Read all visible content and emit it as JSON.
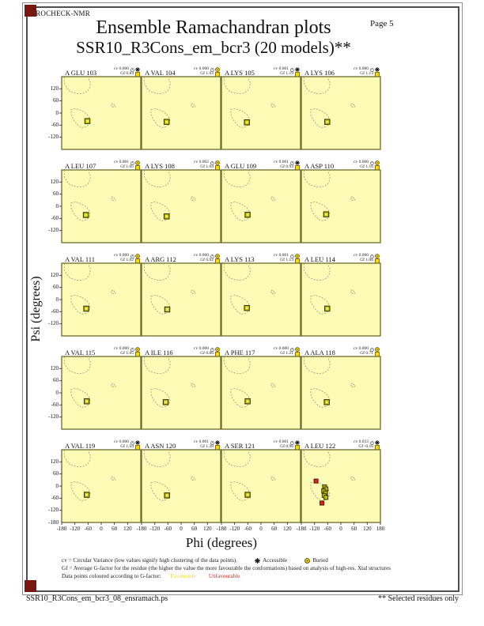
{
  "page": {
    "app": "PROCHECK-NMR",
    "page_label": "Page  5",
    "title": "Ensemble Ramachandran plots",
    "subtitle": "SSR10_R3Cons_em_bcr3 (20 models)**",
    "footer_left": "SSR10_R3Cons_em_bcr3_08_ensramach.ps",
    "footer_right": "** Selected residues only"
  },
  "legend": {
    "line1": "cv = Circular Variance (low values signify high clustering of the data points).",
    "accessible_label": "Accessible",
    "buried_label": "Buried",
    "line2": "Gf = Average G-factor for the residue (the higher the value the more favourable the conformations) based on analysis of high-res. Xtal structures",
    "line3": "Data points coloured according to G-factor:",
    "favourable_label": "Favourable",
    "unfavourable_label": "Unfavourable"
  },
  "colors": {
    "plot_background": "#fbfbb5",
    "plot_border": "#6b6b2e",
    "region_dash": "#9b9b85",
    "favourable_point": "#c9c400",
    "favourable_point_border": "#3a3a00",
    "unfavourable_point": "#d8281a",
    "buried_icon": "#f2df00",
    "corner_mark": "#7a1612"
  },
  "chart_data": {
    "type": "scatter",
    "layout": "4x5 grid of per-residue ensemble Ramachandran plots",
    "xlabel": "Phi (degrees)",
    "ylabel": "Psi (degrees)",
    "xlim": [
      -180,
      180
    ],
    "ylim": [
      -180,
      180
    ],
    "y_tick_values": [
      120,
      60,
      0,
      -60,
      -120
    ],
    "y_edge_tick": -180,
    "x_tick_values": [
      -180,
      -120,
      -60,
      0,
      60,
      120
    ],
    "x_edge_tick": 180,
    "plots": [
      {
        "residue": "A GLU 103",
        "cv_label": "cv 0.000",
        "gf_label": "Gf 0.84",
        "accessibility": "accessible",
        "points": [
          {
            "phi": -63,
            "psi": -40,
            "colour": "favourable"
          }
        ]
      },
      {
        "residue": "A VAL 104",
        "cv_label": "cv 0.000",
        "gf_label": "Gf 1.03",
        "accessibility": "buried",
        "points": [
          {
            "phi": -66,
            "psi": -44,
            "colour": "favourable"
          }
        ]
      },
      {
        "residue": "A LYS 105",
        "cv_label": "cv 0.001",
        "gf_label": "Gf 1.19",
        "accessibility": "accessible",
        "points": [
          {
            "phi": -64,
            "psi": -46,
            "colour": "favourable"
          }
        ]
      },
      {
        "residue": "A LYS 106",
        "cv_label": "cv 0.000",
        "gf_label": "Gf 1.13",
        "accessibility": "accessible",
        "points": [
          {
            "phi": -62,
            "psi": -44,
            "colour": "favourable"
          }
        ]
      },
      {
        "residue": "A LEU 107",
        "cv_label": "cv 0.001",
        "gf_label": "Gf 1.05",
        "accessibility": "buried",
        "points": [
          {
            "phi": -70,
            "psi": -43,
            "colour": "favourable"
          }
        ]
      },
      {
        "residue": "A LYS 108",
        "cv_label": "cv 0.002",
        "gf_label": "Gf 1.04",
        "accessibility": "buried",
        "points": [
          {
            "phi": -66,
            "psi": -50,
            "colour": "favourable"
          }
        ]
      },
      {
        "residue": "A GLU 109",
        "cv_label": "cv 0.001",
        "gf_label": "Gf 0.93",
        "accessibility": "accessible",
        "points": [
          {
            "phi": -61,
            "psi": -42,
            "colour": "favourable"
          }
        ]
      },
      {
        "residue": "A ASP 110",
        "cv_label": "cv 0.000",
        "gf_label": "Gf 1.16",
        "accessibility": "buried",
        "points": [
          {
            "phi": -67,
            "psi": -40,
            "colour": "favourable"
          }
        ]
      },
      {
        "residue": "A VAL 111",
        "cv_label": "cv 0.000",
        "gf_label": "Gf 1.02",
        "accessibility": "buried",
        "points": [
          {
            "phi": -68,
            "psi": -45,
            "colour": "favourable"
          }
        ]
      },
      {
        "residue": "A ARG 112",
        "cv_label": "cv 0.000",
        "gf_label": "Gf 0.92",
        "accessibility": "buried",
        "points": [
          {
            "phi": -63,
            "psi": -49,
            "colour": "favourable"
          }
        ]
      },
      {
        "residue": "A LYS 113",
        "cv_label": "cv 0.001",
        "gf_label": "Gf 1.13",
        "accessibility": "buried",
        "points": [
          {
            "phi": -64,
            "psi": -42,
            "colour": "favourable"
          }
        ]
      },
      {
        "residue": "A LEU 114",
        "cv_label": "cv 0.000",
        "gf_label": "Gf 1.06",
        "accessibility": "buried",
        "points": [
          {
            "phi": -62,
            "psi": -45,
            "colour": "favourable"
          }
        ]
      },
      {
        "residue": "A VAL 115",
        "cv_label": "cv 0.000",
        "gf_label": "Gf 1.05",
        "accessibility": "buried",
        "points": [
          {
            "phi": -66,
            "psi": -42,
            "colour": "favourable"
          }
        ]
      },
      {
        "residue": "A ILE 116",
        "cv_label": "cv 0.000",
        "gf_label": "Gf 0.86",
        "accessibility": "buried",
        "points": [
          {
            "phi": -70,
            "psi": -46,
            "colour": "favourable"
          }
        ]
      },
      {
        "residue": "A PHE 117",
        "cv_label": "cv 0.000",
        "gf_label": "Gf 1.21",
        "accessibility": "buried",
        "points": [
          {
            "phi": -61,
            "psi": -42,
            "colour": "favourable"
          }
        ]
      },
      {
        "residue": "A ALA 118",
        "cv_label": "cv 0.000",
        "gf_label": "Gf 0.71",
        "accessibility": "buried",
        "points": [
          {
            "phi": -64,
            "psi": -46,
            "colour": "favourable"
          }
        ]
      },
      {
        "residue": "A VAL 119",
        "cv_label": "cv 0.000",
        "gf_label": "Gf 1.04",
        "accessibility": "accessible",
        "points": [
          {
            "phi": -66,
            "psi": -43,
            "colour": "favourable"
          }
        ]
      },
      {
        "residue": "A ASN 120",
        "cv_label": "cv 0.001",
        "gf_label": "Gf 1.28",
        "accessibility": "accessible",
        "points": [
          {
            "phi": -64,
            "psi": -46,
            "colour": "favourable"
          }
        ]
      },
      {
        "residue": "A SER 121",
        "cv_label": "cv 0.001",
        "gf_label": "Gf 0.96",
        "accessibility": "accessible",
        "points": [
          {
            "phi": -61,
            "psi": -43,
            "colour": "favourable"
          }
        ]
      },
      {
        "residue": "A LEU 122",
        "cv_label": "cv 0.033",
        "gf_label": "Gf -0.16",
        "accessibility": "accessible",
        "points": [
          {
            "phi": -74,
            "psi": -4,
            "colour": "favourable"
          },
          {
            "phi": -68,
            "psi": -14,
            "colour": "favourable"
          },
          {
            "phi": -78,
            "psi": -24,
            "colour": "favourable"
          },
          {
            "phi": -70,
            "psi": -34,
            "colour": "favourable"
          },
          {
            "phi": -76,
            "psi": -46,
            "colour": "favourable"
          },
          {
            "phi": -68,
            "psi": -56,
            "colour": "favourable"
          },
          {
            "phi": -113,
            "psi": 25,
            "colour": "unfavourable"
          },
          {
            "phi": -86,
            "psi": -84,
            "colour": "unfavourable"
          }
        ]
      }
    ]
  }
}
